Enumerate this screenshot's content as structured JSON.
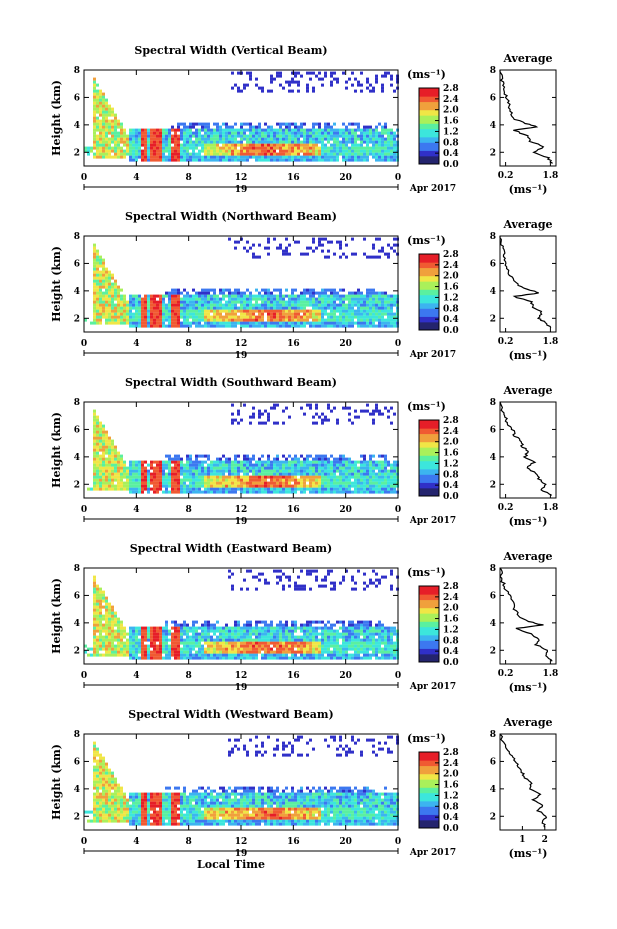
{
  "chart_data": [
    {
      "type": "heatmap",
      "title": "Spectral Width (Vertical Beam)",
      "xlabel": "",
      "ylabel": "Height (km)",
      "xlim": [
        0,
        24
      ],
      "ylim": [
        1,
        8
      ],
      "x_ticks": [
        "0",
        "4",
        "8",
        "12",
        "16",
        "20",
        "0"
      ],
      "y_ticks": [
        "2",
        "4",
        "6",
        "8"
      ],
      "date_labels": [
        "19",
        "Apr 2017"
      ],
      "colorbar": {
        "title": "(ms⁻¹)",
        "range": [
          0,
          2.8
        ],
        "ticks": [
          "0.0",
          "0.4",
          "0.8",
          "1.2",
          "1.6",
          "2.0",
          "2.4",
          "2.8"
        ]
      },
      "average": {
        "title": "Average",
        "xlabel": "(ms⁻¹)",
        "x_ticks": [
          "0.2",
          "1.8"
        ],
        "xlim": [
          0,
          2
        ],
        "y_ticks": [
          "2",
          "4",
          "6",
          "8"
        ],
        "ylim": [
          1,
          8
        ],
        "profile": [
          [
            1.9,
            1.2
          ],
          [
            1.7,
            1.6
          ],
          [
            1.2,
            2
          ],
          [
            1.6,
            2.4
          ],
          [
            1.1,
            2.8
          ],
          [
            1.0,
            3.2
          ],
          [
            0.5,
            3.6
          ],
          [
            1.3,
            3.85
          ],
          [
            0.9,
            4.1
          ],
          [
            0.45,
            4.5
          ],
          [
            0.4,
            5
          ],
          [
            0.3,
            5.5
          ],
          [
            0.25,
            6
          ],
          [
            0.15,
            6.5
          ],
          [
            0.1,
            7
          ],
          [
            0.05,
            7.5
          ],
          [
            0.0,
            8
          ]
        ]
      }
    },
    {
      "type": "heatmap",
      "title": "Spectral Width (Northward Beam)",
      "xlabel": "",
      "ylabel": "Height (km)",
      "xlim": [
        0,
        24
      ],
      "ylim": [
        1,
        8
      ],
      "x_ticks": [
        "0",
        "4",
        "8",
        "12",
        "16",
        "20",
        "0"
      ],
      "y_ticks": [
        "2",
        "4",
        "6",
        "8"
      ],
      "date_labels": [
        "19",
        "Apr 2017"
      ],
      "colorbar": {
        "title": "(ms⁻¹)",
        "range": [
          0,
          2.8
        ],
        "ticks": [
          "0.0",
          "0.4",
          "0.8",
          "1.2",
          "1.6",
          "2.0",
          "2.4",
          "2.8"
        ]
      },
      "average": {
        "title": "Average",
        "xlabel": "(ms⁻¹)",
        "x_ticks": [
          "0.2",
          "1.8"
        ],
        "xlim": [
          0,
          2
        ],
        "y_ticks": [
          "2",
          "4",
          "6",
          "8"
        ],
        "ylim": [
          1,
          8
        ],
        "profile": [
          [
            1.8,
            1.3
          ],
          [
            1.6,
            1.7
          ],
          [
            1.4,
            2
          ],
          [
            1.5,
            2.4
          ],
          [
            1.2,
            2.8
          ],
          [
            1.1,
            3.2
          ],
          [
            0.5,
            3.6
          ],
          [
            1.4,
            3.85
          ],
          [
            1.0,
            4.1
          ],
          [
            0.6,
            4.5
          ],
          [
            0.4,
            5
          ],
          [
            0.3,
            5.5
          ],
          [
            0.2,
            6
          ],
          [
            0.15,
            6.5
          ],
          [
            0.1,
            7
          ],
          [
            0.05,
            7.5
          ],
          [
            0.0,
            8
          ]
        ]
      }
    },
    {
      "type": "heatmap",
      "title": "Spectral Width (Southward Beam)",
      "xlabel": "",
      "ylabel": "Height (km)",
      "xlim": [
        0,
        24
      ],
      "ylim": [
        1,
        8
      ],
      "x_ticks": [
        "0",
        "4",
        "8",
        "12",
        "16",
        "20",
        "0"
      ],
      "y_ticks": [
        "2",
        "4",
        "6",
        "8"
      ],
      "date_labels": [
        "19",
        "Apr 2017"
      ],
      "colorbar": {
        "title": "(ms⁻¹)",
        "range": [
          0,
          2.8
        ],
        "ticks": [
          "0.0",
          "0.4",
          "0.8",
          "1.2",
          "1.6",
          "2.0",
          "2.4",
          "2.8"
        ]
      },
      "average": {
        "title": "Average",
        "xlabel": "(ms⁻¹)",
        "x_ticks": [
          "0.2",
          "1.8"
        ],
        "xlim": [
          0,
          2
        ],
        "y_ticks": [
          "2",
          "4",
          "6",
          "8"
        ],
        "ylim": [
          1,
          8
        ],
        "profile": [
          [
            1.8,
            1.2
          ],
          [
            1.5,
            1.6
          ],
          [
            1.6,
            2
          ],
          [
            1.4,
            2.4
          ],
          [
            1.3,
            2.8
          ],
          [
            1.0,
            3.2
          ],
          [
            1.2,
            3.6
          ],
          [
            0.9,
            4
          ],
          [
            1.0,
            4.4
          ],
          [
            0.8,
            4.8
          ],
          [
            0.7,
            5.2
          ],
          [
            0.5,
            5.6
          ],
          [
            0.45,
            6
          ],
          [
            0.3,
            6.4
          ],
          [
            0.2,
            6.8
          ],
          [
            0.1,
            7.2
          ],
          [
            0.0,
            8
          ]
        ]
      }
    },
    {
      "type": "heatmap",
      "title": "Spectral Width (Eastward Beam)",
      "xlabel": "",
      "ylabel": "Height (km)",
      "xlim": [
        0,
        24
      ],
      "ylim": [
        1,
        8
      ],
      "x_ticks": [
        "0",
        "4",
        "8",
        "12",
        "16",
        "20",
        "0"
      ],
      "y_ticks": [
        "2",
        "4",
        "6",
        "8"
      ],
      "date_labels": [
        "19",
        "Apr 2017"
      ],
      "colorbar": {
        "title": "(ms⁻¹)",
        "range": [
          0,
          2.8
        ],
        "ticks": [
          "0.0",
          "0.4",
          "0.8",
          "1.2",
          "1.6",
          "2.0",
          "2.4",
          "2.8"
        ]
      },
      "average": {
        "title": "Average",
        "xlabel": "(ms⁻¹)",
        "x_ticks": [
          "0.2",
          "1.8"
        ],
        "xlim": [
          0,
          2
        ],
        "y_ticks": [
          "2",
          "4",
          "6",
          "8"
        ],
        "ylim": [
          1,
          8
        ],
        "profile": [
          [
            1.9,
            1.2
          ],
          [
            1.6,
            1.6
          ],
          [
            1.7,
            2
          ],
          [
            1.3,
            2.4
          ],
          [
            1.4,
            2.8
          ],
          [
            1.1,
            3.2
          ],
          [
            0.6,
            3.6
          ],
          [
            1.5,
            3.85
          ],
          [
            1.0,
            4.1
          ],
          [
            0.7,
            4.5
          ],
          [
            0.5,
            5
          ],
          [
            0.45,
            5.5
          ],
          [
            0.35,
            6
          ],
          [
            0.2,
            6.5
          ],
          [
            0.1,
            7
          ],
          [
            0.05,
            7.5
          ],
          [
            0.0,
            8
          ]
        ]
      }
    },
    {
      "type": "heatmap",
      "title": "Spectral Width (Westward Beam)",
      "xlabel": "Local Time",
      "ylabel": "Height (km)",
      "xlim": [
        0,
        24
      ],
      "ylim": [
        1,
        8
      ],
      "x_ticks": [
        "0",
        "4",
        "8",
        "12",
        "16",
        "20",
        "0"
      ],
      "y_ticks": [
        "2",
        "4",
        "6",
        "8"
      ],
      "date_labels": [
        "19",
        "Apr 2017"
      ],
      "colorbar": {
        "title": "(ms⁻¹)",
        "range": [
          0,
          2.8
        ],
        "ticks": [
          "0.0",
          "0.4",
          "0.8",
          "1.2",
          "1.6",
          "2.0",
          "2.4",
          "2.8"
        ]
      },
      "average": {
        "title": "Average",
        "xlabel": "(ms⁻¹)",
        "x_ticks": [
          "1",
          "2"
        ],
        "xlim": [
          0,
          2.5
        ],
        "y_ticks": [
          "2",
          "4",
          "6",
          "8"
        ],
        "ylim": [
          1,
          8
        ],
        "profile": [
          [
            2.0,
            1.2
          ],
          [
            1.9,
            1.6
          ],
          [
            2.1,
            2
          ],
          [
            1.7,
            2.4
          ],
          [
            1.9,
            2.8
          ],
          [
            1.5,
            3.2
          ],
          [
            1.8,
            3.6
          ],
          [
            1.3,
            4
          ],
          [
            1.4,
            4.4
          ],
          [
            1.1,
            4.8
          ],
          [
            1.0,
            5.2
          ],
          [
            0.8,
            5.6
          ],
          [
            0.7,
            6
          ],
          [
            0.5,
            6.4
          ],
          [
            0.4,
            6.8
          ],
          [
            0.2,
            7.2
          ],
          [
            0.0,
            8
          ]
        ]
      }
    }
  ],
  "colors": {
    "colormap": [
      "#24246e",
      "#3030c8",
      "#3c78f0",
      "#3cb4f0",
      "#3ce6dc",
      "#5af0a0",
      "#aaf05a",
      "#f0e646",
      "#f0a03c",
      "#f05a32",
      "#e61e28"
    ]
  }
}
